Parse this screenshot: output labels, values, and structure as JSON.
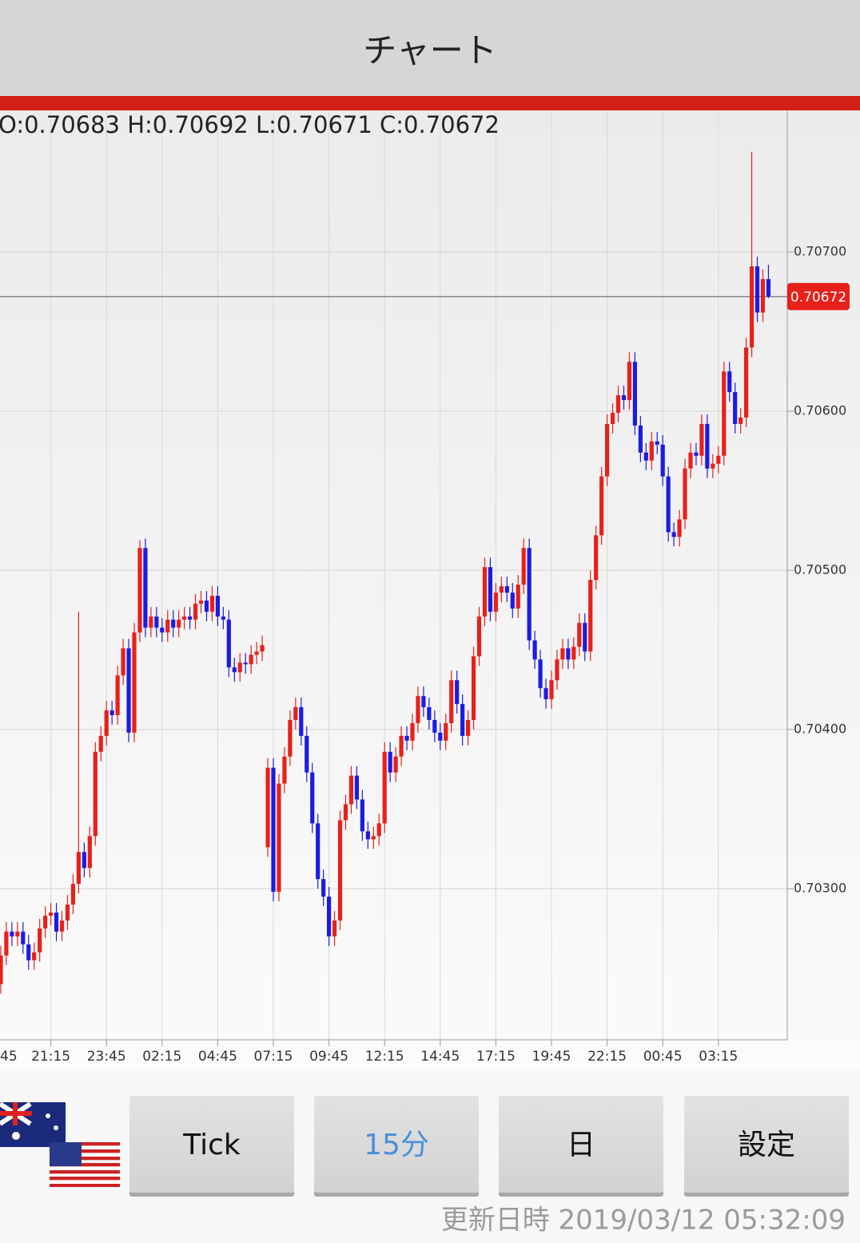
{
  "header": {
    "title": "チャート"
  },
  "chart_data": {
    "type": "candlestick",
    "ohlc_label": "O:0.70683 H:0.70692 L:0.70671 C:0.70672",
    "categories": [
      "45",
      null,
      null,
      null,
      null,
      null,
      null,
      null,
      null,
      null,
      "21:15",
      null,
      null,
      null,
      null,
      null,
      null,
      null,
      null,
      null,
      "23:45",
      null,
      null,
      null,
      null,
      null,
      null,
      null,
      null,
      null,
      "02:15",
      null,
      null,
      null,
      null,
      null,
      null,
      null,
      null,
      null,
      "04:45",
      null,
      null,
      null,
      null,
      null,
      null,
      null,
      null,
      null,
      "07:15",
      null,
      null,
      null,
      null,
      null,
      null,
      null,
      null,
      null,
      "09:45",
      null,
      null,
      null,
      null,
      null,
      null,
      null,
      null,
      null,
      "12:15",
      null,
      null,
      null,
      null,
      null,
      null,
      null,
      null,
      null,
      "14:45",
      null,
      null,
      null,
      null,
      null,
      null,
      null,
      null,
      null,
      "17:15",
      null,
      null,
      null,
      null,
      null,
      null,
      null,
      null,
      null,
      "19:45",
      null,
      null,
      null,
      null,
      null,
      null,
      null,
      null,
      null,
      "22:15",
      null,
      null,
      null,
      null,
      null,
      null,
      null,
      null,
      null,
      "00:45",
      null,
      null,
      null,
      null,
      null,
      null,
      null,
      null,
      null,
      "03:15",
      null,
      null,
      null,
      null,
      null,
      null,
      null,
      null,
      null
    ],
    "open": [
      0.7025,
      0.7024,
      0.70258,
      0.70273,
      0.7027,
      0.70273,
      0.70265,
      0.70255,
      0.7026,
      0.70275,
      0.70283,
      0.70285,
      0.70273,
      0.7028,
      0.7029,
      0.70303,
      0.70323,
      0.70313,
      0.70333,
      0.70386,
      0.70396,
      0.70412,
      0.70409,
      0.70434,
      0.70451,
      0.70398,
      0.70461,
      0.70514,
      0.70464,
      0.70471,
      0.70464,
      0.70461,
      0.70469,
      0.70464,
      0.70469,
      0.70471,
      0.70469,
      0.70479,
      0.70481,
      0.70474,
      0.70484,
      0.70471,
      0.70469,
      0.70439,
      0.70436,
      0.70442,
      0.70441,
      0.70447,
      0.70449,
      0.70326,
      0.70376,
      0.70298,
      0.70366,
      0.70383,
      0.70406,
      0.70414,
      0.70396,
      0.70373,
      0.70341,
      0.70306,
      0.70295,
      0.7027,
      0.7028,
      0.70343,
      0.70353,
      0.70371,
      0.70356,
      0.70336,
      0.70331,
      0.70333,
      0.70341,
      0.70386,
      0.70373,
      0.70383,
      0.70396,
      0.70393,
      0.70404,
      0.70421,
      0.70414,
      0.70406,
      0.70398,
      0.70393,
      0.70404,
      0.70431,
      0.70416,
      0.70396,
      0.70406,
      0.70446,
      0.70471,
      0.70502,
      0.70474,
      0.70486,
      0.7049,
      0.70486,
      0.70476,
      0.70491,
      0.70514,
      0.70456,
      0.70444,
      0.70426,
      0.70419,
      0.70431,
      0.70444,
      0.70451,
      0.70444,
      0.70452,
      0.70467,
      0.70449,
      0.70494,
      0.70522,
      0.70559,
      0.70592,
      0.70599,
      0.7061,
      0.70607,
      0.70631,
      0.70591,
      0.70574,
      0.70569,
      0.70581,
      0.70579,
      0.70559,
      0.70524,
      0.70521,
      0.70532,
      0.70564,
      0.70574,
      0.70572,
      0.70592,
      0.70564,
      0.70567,
      0.70572,
      0.70625,
      0.70612,
      0.70592,
      0.70596,
      0.7064,
      0.70691,
      0.70662,
      0.70683
    ],
    "high": [
      0.70256,
      0.70264,
      0.70279,
      0.70279,
      0.70279,
      0.70279,
      0.70271,
      0.70266,
      0.70281,
      0.70289,
      0.70291,
      0.70291,
      0.70286,
      0.70296,
      0.70309,
      0.70474,
      0.70329,
      0.70339,
      0.70392,
      0.70402,
      0.70418,
      0.70418,
      0.7044,
      0.70457,
      0.70457,
      0.70467,
      0.70519,
      0.7052,
      0.70477,
      0.70477,
      0.7047,
      0.70475,
      0.70475,
      0.70475,
      0.70477,
      0.70477,
      0.70485,
      0.70487,
      0.70487,
      0.7049,
      0.7049,
      0.70477,
      0.70475,
      0.70445,
      0.70448,
      0.70448,
      0.70453,
      0.70455,
      0.70459,
      0.70382,
      0.70382,
      0.70372,
      0.70389,
      0.70412,
      0.7042,
      0.7042,
      0.70402,
      0.70379,
      0.70347,
      0.70312,
      0.70301,
      0.70286,
      0.70349,
      0.70359,
      0.70377,
      0.70377,
      0.70362,
      0.70342,
      0.70339,
      0.70347,
      0.70392,
      0.70392,
      0.70389,
      0.70402,
      0.70402,
      0.7041,
      0.70427,
      0.70427,
      0.7042,
      0.70412,
      0.70404,
      0.7041,
      0.70437,
      0.70437,
      0.70422,
      0.70412,
      0.70452,
      0.70477,
      0.70508,
      0.70508,
      0.70492,
      0.70496,
      0.70496,
      0.70492,
      0.70497,
      0.7052,
      0.7052,
      0.70462,
      0.7045,
      0.70432,
      0.70437,
      0.7045,
      0.70457,
      0.70457,
      0.70458,
      0.70473,
      0.70473,
      0.705,
      0.70528,
      0.70565,
      0.70598,
      0.70605,
      0.70616,
      0.70616,
      0.70637,
      0.70637,
      0.70597,
      0.7058,
      0.70587,
      0.70587,
      0.70585,
      0.70565,
      0.7053,
      0.70538,
      0.7057,
      0.7058,
      0.7058,
      0.70598,
      0.70598,
      0.70573,
      0.70578,
      0.70631,
      0.70631,
      0.70618,
      0.70602,
      0.70646,
      0.70763,
      0.70697,
      0.70689,
      0.70692
    ],
    "low": [
      0.70234,
      0.70234,
      0.70252,
      0.70264,
      0.70264,
      0.70259,
      0.70249,
      0.70249,
      0.70254,
      0.70269,
      0.70277,
      0.70267,
      0.70267,
      0.70274,
      0.70284,
      0.70297,
      0.70307,
      0.70307,
      0.70327,
      0.7038,
      0.7039,
      0.70403,
      0.70403,
      0.70428,
      0.70392,
      0.70392,
      0.70455,
      0.70458,
      0.70458,
      0.70458,
      0.70455,
      0.70455,
      0.70458,
      0.70458,
      0.70463,
      0.70463,
      0.70463,
      0.70473,
      0.70468,
      0.70468,
      0.70465,
      0.70463,
      0.70433,
      0.7043,
      0.7043,
      0.70435,
      0.70435,
      0.70441,
      0.70443,
      0.7032,
      0.70292,
      0.70292,
      0.7036,
      0.70377,
      0.704,
      0.7039,
      0.70367,
      0.70335,
      0.703,
      0.70289,
      0.70264,
      0.70264,
      0.70274,
      0.70337,
      0.70347,
      0.7035,
      0.7033,
      0.70325,
      0.70325,
      0.70327,
      0.70335,
      0.70367,
      0.70367,
      0.70377,
      0.70387,
      0.70387,
      0.70398,
      0.70408,
      0.704,
      0.70392,
      0.70387,
      0.70387,
      0.70398,
      0.7041,
      0.7039,
      0.7039,
      0.704,
      0.7044,
      0.70465,
      0.70468,
      0.70468,
      0.7048,
      0.7048,
      0.7047,
      0.7047,
      0.70485,
      0.7045,
      0.70438,
      0.7042,
      0.70413,
      0.70413,
      0.70425,
      0.70438,
      0.70438,
      0.70438,
      0.70446,
      0.70443,
      0.70443,
      0.70488,
      0.70516,
      0.70553,
      0.70586,
      0.70593,
      0.70601,
      0.70601,
      0.70585,
      0.70568,
      0.70563,
      0.70563,
      0.70573,
      0.70553,
      0.70518,
      0.70515,
      0.70515,
      0.70526,
      0.70558,
      0.70566,
      0.70566,
      0.70558,
      0.70558,
      0.70561,
      0.70566,
      0.70606,
      0.70586,
      0.70586,
      0.7059,
      0.70634,
      0.70656,
      0.70656,
      0.70671
    ],
    "close": [
      0.7024,
      0.70258,
      0.70273,
      0.7027,
      0.70273,
      0.70265,
      0.70255,
      0.7026,
      0.70275,
      0.70283,
      0.70285,
      0.70273,
      0.7028,
      0.7029,
      0.70303,
      0.70323,
      0.70313,
      0.70333,
      0.70386,
      0.70396,
      0.70412,
      0.70409,
      0.70434,
      0.70451,
      0.70398,
      0.70461,
      0.70514,
      0.70464,
      0.70471,
      0.70464,
      0.70461,
      0.70469,
      0.70464,
      0.70469,
      0.70471,
      0.70469,
      0.70479,
      0.70481,
      0.70474,
      0.70484,
      0.70471,
      0.70469,
      0.70439,
      0.70436,
      0.70442,
      0.70441,
      0.70447,
      0.70449,
      0.70453,
      0.70376,
      0.70298,
      0.70366,
      0.70383,
      0.70406,
      0.70414,
      0.70396,
      0.70373,
      0.70341,
      0.70306,
      0.70295,
      0.7027,
      0.7028,
      0.70343,
      0.70353,
      0.70371,
      0.70356,
      0.70336,
      0.70331,
      0.70333,
      0.70341,
      0.70386,
      0.70373,
      0.70383,
      0.70396,
      0.70393,
      0.70404,
      0.70421,
      0.70414,
      0.70406,
      0.70398,
      0.70393,
      0.70404,
      0.70431,
      0.70416,
      0.70396,
      0.70406,
      0.70446,
      0.70471,
      0.70502,
      0.70474,
      0.70486,
      0.7049,
      0.70486,
      0.70476,
      0.70491,
      0.70514,
      0.70456,
      0.70444,
      0.70426,
      0.70419,
      0.70431,
      0.70444,
      0.70451,
      0.70444,
      0.70452,
      0.70467,
      0.70449,
      0.70494,
      0.70522,
      0.70559,
      0.70592,
      0.70599,
      0.7061,
      0.70607,
      0.70631,
      0.70591,
      0.70574,
      0.70569,
      0.70581,
      0.70579,
      0.70559,
      0.70524,
      0.70521,
      0.70532,
      0.70564,
      0.70574,
      0.70572,
      0.70592,
      0.70564,
      0.70567,
      0.70572,
      0.70625,
      0.70612,
      0.70592,
      0.70596,
      0.7064,
      0.70691,
      0.70662,
      0.70683,
      0.70672
    ],
    "up_color": "#e8201a",
    "down_color": "#1c1ce0",
    "ylim": [
      0.70205,
      0.70789
    ],
    "yticks": [
      {
        "value": 0.703,
        "label": "0.70300"
      },
      {
        "value": 0.704,
        "label": "0.70400"
      },
      {
        "value": 0.705,
        "label": "0.70500"
      },
      {
        "value": 0.706,
        "label": "0.70600"
      },
      {
        "value": 0.707,
        "label": "0.70700"
      }
    ],
    "current_price": {
      "value": 0.70672,
      "label": "0.70672"
    },
    "grid": true
  },
  "buttons": [
    {
      "label": "Tick"
    },
    {
      "label": "15分"
    },
    {
      "label": "日"
    },
    {
      "label": "設定"
    }
  ],
  "footer": {
    "updated": "更新日時 2019/03/12 05:32:09"
  }
}
